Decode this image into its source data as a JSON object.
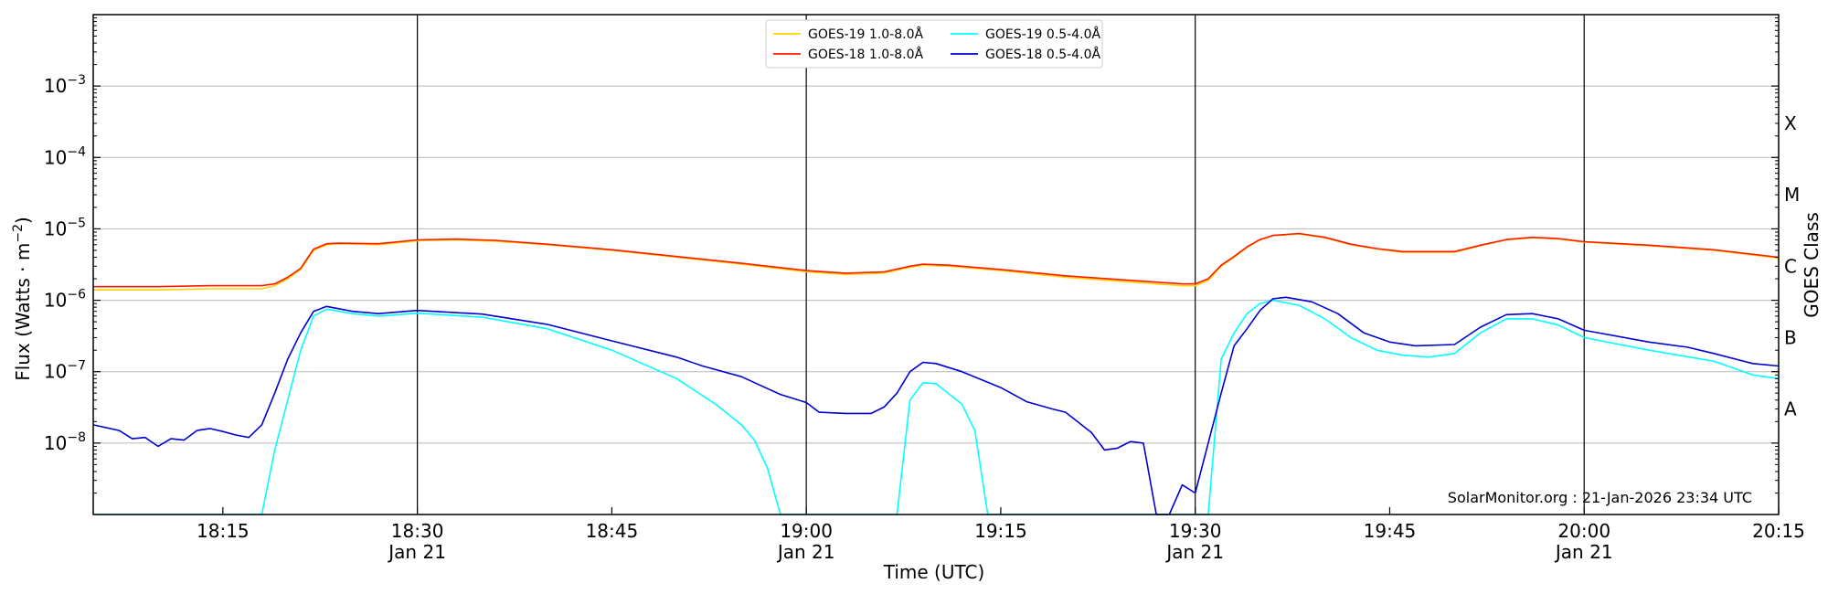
{
  "chart_data": {
    "type": "line",
    "title": "",
    "xlabel": "Time (UTC)",
    "ylabel_main": "Flux (Watts · m",
    "ylabel_sup": "−2",
    "ylabel_close": ")",
    "right_label": "GOES Class",
    "credit": "SolarMonitor.org : 21-Jan-2026 23:34 UTC",
    "x_range": [
      "18:05",
      "20:15"
    ],
    "y_scale": "log",
    "ylim": [
      1e-09,
      0.01
    ],
    "grid": "horizontal",
    "legend_position": "top-center",
    "y_ticks": [
      {
        "value": 1e-08,
        "base": "10",
        "exp": "−8"
      },
      {
        "value": 1e-07,
        "base": "10",
        "exp": "−7"
      },
      {
        "value": 1e-06,
        "base": "10",
        "exp": "−6"
      },
      {
        "value": 1e-05,
        "base": "10",
        "exp": "−5"
      },
      {
        "value": 0.0001,
        "base": "10",
        "exp": "−4"
      },
      {
        "value": 0.001,
        "base": "10",
        "exp": "−3"
      }
    ],
    "x_ticks": [
      {
        "time": "18:15",
        "label": "18:15",
        "date": ""
      },
      {
        "time": "18:30",
        "label": "18:30",
        "date": "Jan 21"
      },
      {
        "time": "18:45",
        "label": "18:45",
        "date": ""
      },
      {
        "time": "19:00",
        "label": "19:00",
        "date": "Jan 21"
      },
      {
        "time": "19:15",
        "label": "19:15",
        "date": ""
      },
      {
        "time": "19:30",
        "label": "19:30",
        "date": "Jan 21"
      },
      {
        "time": "19:45",
        "label": "19:45",
        "date": ""
      },
      {
        "time": "20:00",
        "label": "20:00",
        "date": "Jan 21"
      },
      {
        "time": "20:15",
        "label": "20:15",
        "date": ""
      }
    ],
    "vertical_lines": [
      "18:30",
      "19:00",
      "19:30",
      "20:00"
    ],
    "class_labels": [
      {
        "label": "A",
        "value": 3e-08
      },
      {
        "label": "B",
        "value": 3e-07
      },
      {
        "label": "C",
        "value": 3e-06
      },
      {
        "label": "M",
        "value": 3e-05
      },
      {
        "label": "X",
        "value": 0.0003
      }
    ],
    "series": [
      {
        "name": "GOES-19 1.0-8.0Å",
        "color": "#ffd000",
        "points": [
          [
            "18:05",
            1.4e-06
          ],
          [
            "18:10",
            1.4e-06
          ],
          [
            "18:14",
            1.45e-06
          ],
          [
            "18:18",
            1.45e-06
          ],
          [
            "18:19",
            1.6e-06
          ],
          [
            "18:20",
            2e-06
          ],
          [
            "18:21",
            2.7e-06
          ],
          [
            "18:22",
            5e-06
          ],
          [
            "18:23",
            6e-06
          ],
          [
            "18:24",
            6.2e-06
          ],
          [
            "18:27",
            6e-06
          ],
          [
            "18:30",
            6.8e-06
          ],
          [
            "18:33",
            7e-06
          ],
          [
            "18:36",
            6.7e-06
          ],
          [
            "18:40",
            6e-06
          ],
          [
            "18:45",
            5e-06
          ],
          [
            "18:50",
            4e-06
          ],
          [
            "18:55",
            3.2e-06
          ],
          [
            "19:00",
            2.5e-06
          ],
          [
            "19:03",
            2.3e-06
          ],
          [
            "19:06",
            2.4e-06
          ],
          [
            "19:08",
            2.9e-06
          ],
          [
            "19:09",
            3.1e-06
          ],
          [
            "19:11",
            3e-06
          ],
          [
            "19:15",
            2.6e-06
          ],
          [
            "19:20",
            2.1e-06
          ],
          [
            "19:25",
            1.8e-06
          ],
          [
            "19:29",
            1.6e-06
          ],
          [
            "19:30",
            1.6e-06
          ],
          [
            "19:31",
            1.9e-06
          ],
          [
            "19:32",
            3e-06
          ],
          [
            "19:33",
            4e-06
          ],
          [
            "19:34",
            5.5e-06
          ],
          [
            "19:35",
            7e-06
          ],
          [
            "19:36",
            8e-06
          ],
          [
            "19:38",
            8.5e-06
          ],
          [
            "19:40",
            7.5e-06
          ],
          [
            "19:42",
            6e-06
          ],
          [
            "19:44",
            5.2e-06
          ],
          [
            "19:46",
            4.7e-06
          ],
          [
            "19:50",
            4.7e-06
          ],
          [
            "19:52",
            5.8e-06
          ],
          [
            "19:54",
            7e-06
          ],
          [
            "19:56",
            7.5e-06
          ],
          [
            "19:58",
            7.2e-06
          ],
          [
            "20:00",
            6.5e-06
          ],
          [
            "20:05",
            5.8e-06
          ],
          [
            "20:10",
            5e-06
          ],
          [
            "20:15",
            3.9e-06
          ]
        ]
      },
      {
        "name": "GOES-18 1.0-8.0Å",
        "color": "#ff1a00",
        "points": [
          [
            "18:05",
            1.55e-06
          ],
          [
            "18:10",
            1.55e-06
          ],
          [
            "18:14",
            1.6e-06
          ],
          [
            "18:18",
            1.6e-06
          ],
          [
            "18:19",
            1.7e-06
          ],
          [
            "18:20",
            2.1e-06
          ],
          [
            "18:21",
            2.8e-06
          ],
          [
            "18:22",
            5.2e-06
          ],
          [
            "18:23",
            6.2e-06
          ],
          [
            "18:24",
            6.3e-06
          ],
          [
            "18:27",
            6.2e-06
          ],
          [
            "18:30",
            7e-06
          ],
          [
            "18:33",
            7.2e-06
          ],
          [
            "18:36",
            6.9e-06
          ],
          [
            "18:40",
            6.1e-06
          ],
          [
            "18:45",
            5.1e-06
          ],
          [
            "18:50",
            4.1e-06
          ],
          [
            "18:55",
            3.3e-06
          ],
          [
            "19:00",
            2.6e-06
          ],
          [
            "19:03",
            2.4e-06
          ],
          [
            "19:06",
            2.5e-06
          ],
          [
            "19:08",
            3e-06
          ],
          [
            "19:09",
            3.2e-06
          ],
          [
            "19:11",
            3.1e-06
          ],
          [
            "19:15",
            2.7e-06
          ],
          [
            "19:20",
            2.2e-06
          ],
          [
            "19:25",
            1.9e-06
          ],
          [
            "19:29",
            1.7e-06
          ],
          [
            "19:30",
            1.7e-06
          ],
          [
            "19:31",
            2e-06
          ],
          [
            "19:32",
            3.1e-06
          ],
          [
            "19:33",
            4.1e-06
          ],
          [
            "19:34",
            5.6e-06
          ],
          [
            "19:35",
            7.1e-06
          ],
          [
            "19:36",
            8.1e-06
          ],
          [
            "19:38",
            8.6e-06
          ],
          [
            "19:40",
            7.6e-06
          ],
          [
            "19:42",
            6.1e-06
          ],
          [
            "19:44",
            5.3e-06
          ],
          [
            "19:46",
            4.8e-06
          ],
          [
            "19:50",
            4.8e-06
          ],
          [
            "19:52",
            5.9e-06
          ],
          [
            "19:54",
            7.1e-06
          ],
          [
            "19:56",
            7.6e-06
          ],
          [
            "19:58",
            7.3e-06
          ],
          [
            "20:00",
            6.6e-06
          ],
          [
            "20:05",
            5.9e-06
          ],
          [
            "20:10",
            5.1e-06
          ],
          [
            "20:15",
            4e-06
          ]
        ]
      },
      {
        "name": "GOES-19 0.5-4.0Å",
        "color": "#00ffff",
        "points": [
          [
            "18:05",
            1e-09
          ],
          [
            "18:18",
            1e-09
          ],
          [
            "18:19",
            8e-09
          ],
          [
            "18:20",
            4e-08
          ],
          [
            "18:21",
            2e-07
          ],
          [
            "18:22",
            6e-07
          ],
          [
            "18:23",
            7.5e-07
          ],
          [
            "18:25",
            6.5e-07
          ],
          [
            "18:27",
            6e-07
          ],
          [
            "18:30",
            6.6e-07
          ],
          [
            "18:35",
            5.8e-07
          ],
          [
            "18:40",
            4e-07
          ],
          [
            "18:45",
            2e-07
          ],
          [
            "18:50",
            8e-08
          ],
          [
            "18:53",
            3.5e-08
          ],
          [
            "18:55",
            1.8e-08
          ],
          [
            "18:56",
            1.1e-08
          ],
          [
            "18:57",
            4.5e-09
          ],
          [
            "18:58",
            1e-09
          ],
          [
            "19:07",
            1e-09
          ],
          [
            "19:08",
            4e-08
          ],
          [
            "19:09",
            7e-08
          ],
          [
            "19:10",
            6.8e-08
          ],
          [
            "19:12",
            3.5e-08
          ],
          [
            "19:13",
            1.5e-08
          ],
          [
            "19:14",
            1e-09
          ],
          [
            "19:30",
            1e-09
          ],
          [
            "19:31",
            1e-09
          ],
          [
            "19:32",
            1.5e-07
          ],
          [
            "19:33",
            3.5e-07
          ],
          [
            "19:34",
            6.5e-07
          ],
          [
            "19:35",
            9e-07
          ],
          [
            "19:36",
            1e-06
          ],
          [
            "19:38",
            8.5e-07
          ],
          [
            "19:40",
            5.5e-07
          ],
          [
            "19:42",
            3e-07
          ],
          [
            "19:44",
            2e-07
          ],
          [
            "19:46",
            1.7e-07
          ],
          [
            "19:48",
            1.6e-07
          ],
          [
            "19:50",
            1.8e-07
          ],
          [
            "19:52",
            3.5e-07
          ],
          [
            "19:54",
            5.5e-07
          ],
          [
            "19:56",
            5.5e-07
          ],
          [
            "19:58",
            4.5e-07
          ],
          [
            "20:00",
            3e-07
          ],
          [
            "20:05",
            2e-07
          ],
          [
            "20:10",
            1.4e-07
          ],
          [
            "20:13",
            9e-08
          ],
          [
            "20:15",
            8e-08
          ]
        ]
      },
      {
        "name": "GOES-18 0.5-4.0Å",
        "color": "#0000d4",
        "points": [
          [
            "18:05",
            1.8e-08
          ],
          [
            "18:07",
            1.5e-08
          ],
          [
            "18:08",
            1.15e-08
          ],
          [
            "18:09",
            1.2e-08
          ],
          [
            "18:10",
            9e-09
          ],
          [
            "18:11",
            1.15e-08
          ],
          [
            "18:12",
            1.1e-08
          ],
          [
            "18:13",
            1.5e-08
          ],
          [
            "18:14",
            1.6e-08
          ],
          [
            "18:15",
            1.45e-08
          ],
          [
            "18:16",
            1.3e-08
          ],
          [
            "18:17",
            1.2e-08
          ],
          [
            "18:18",
            1.8e-08
          ],
          [
            "18:19",
            5e-08
          ],
          [
            "18:20",
            1.5e-07
          ],
          [
            "18:21",
            3.5e-07
          ],
          [
            "18:22",
            7e-07
          ],
          [
            "18:23",
            8.2e-07
          ],
          [
            "18:25",
            7e-07
          ],
          [
            "18:27",
            6.5e-07
          ],
          [
            "18:30",
            7.2e-07
          ],
          [
            "18:35",
            6.4e-07
          ],
          [
            "18:40",
            4.6e-07
          ],
          [
            "18:45",
            2.7e-07
          ],
          [
            "18:50",
            1.6e-07
          ],
          [
            "18:52",
            1.2e-07
          ],
          [
            "18:55",
            8.5e-08
          ],
          [
            "18:57",
            5.8e-08
          ],
          [
            "18:58",
            4.8e-08
          ],
          [
            "19:00",
            3.7e-08
          ],
          [
            "19:01",
            2.7e-08
          ],
          [
            "19:03",
            2.6e-08
          ],
          [
            "19:05",
            2.6e-08
          ],
          [
            "19:06",
            3.2e-08
          ],
          [
            "19:07",
            5e-08
          ],
          [
            "19:08",
            1e-07
          ],
          [
            "19:09",
            1.35e-07
          ],
          [
            "19:10",
            1.3e-07
          ],
          [
            "19:12",
            1e-07
          ],
          [
            "19:15",
            6e-08
          ],
          [
            "19:17",
            3.8e-08
          ],
          [
            "19:19",
            3e-08
          ],
          [
            "19:20",
            2.7e-08
          ],
          [
            "19:22",
            1.4e-08
          ],
          [
            "19:23",
            8e-09
          ],
          [
            "19:24",
            8.5e-09
          ],
          [
            "19:25",
            1.05e-08
          ],
          [
            "19:26",
            1e-08
          ],
          [
            "19:27",
            1e-09
          ],
          [
            "19:28",
            1e-09
          ],
          [
            "19:29",
            2.6e-09
          ],
          [
            "19:30",
            2e-09
          ],
          [
            "19:31",
            1e-08
          ],
          [
            "19:32",
            5e-08
          ],
          [
            "19:33",
            2.3e-07
          ],
          [
            "19:34",
            4e-07
          ],
          [
            "19:35",
            7.2e-07
          ],
          [
            "19:36",
            1.05e-06
          ],
          [
            "19:37",
            1.1e-06
          ],
          [
            "19:39",
            9.5e-07
          ],
          [
            "19:41",
            6.5e-07
          ],
          [
            "19:43",
            3.5e-07
          ],
          [
            "19:45",
            2.6e-07
          ],
          [
            "19:47",
            2.3e-07
          ],
          [
            "19:50",
            2.4e-07
          ],
          [
            "19:52",
            4.2e-07
          ],
          [
            "19:54",
            6.3e-07
          ],
          [
            "19:56",
            6.5e-07
          ],
          [
            "19:58",
            5.5e-07
          ],
          [
            "20:00",
            3.8e-07
          ],
          [
            "20:05",
            2.6e-07
          ],
          [
            "20:08",
            2.2e-07
          ],
          [
            "20:10",
            1.8e-07
          ],
          [
            "20:13",
            1.3e-07
          ],
          [
            "20:15",
            1.2e-07
          ]
        ]
      }
    ]
  }
}
